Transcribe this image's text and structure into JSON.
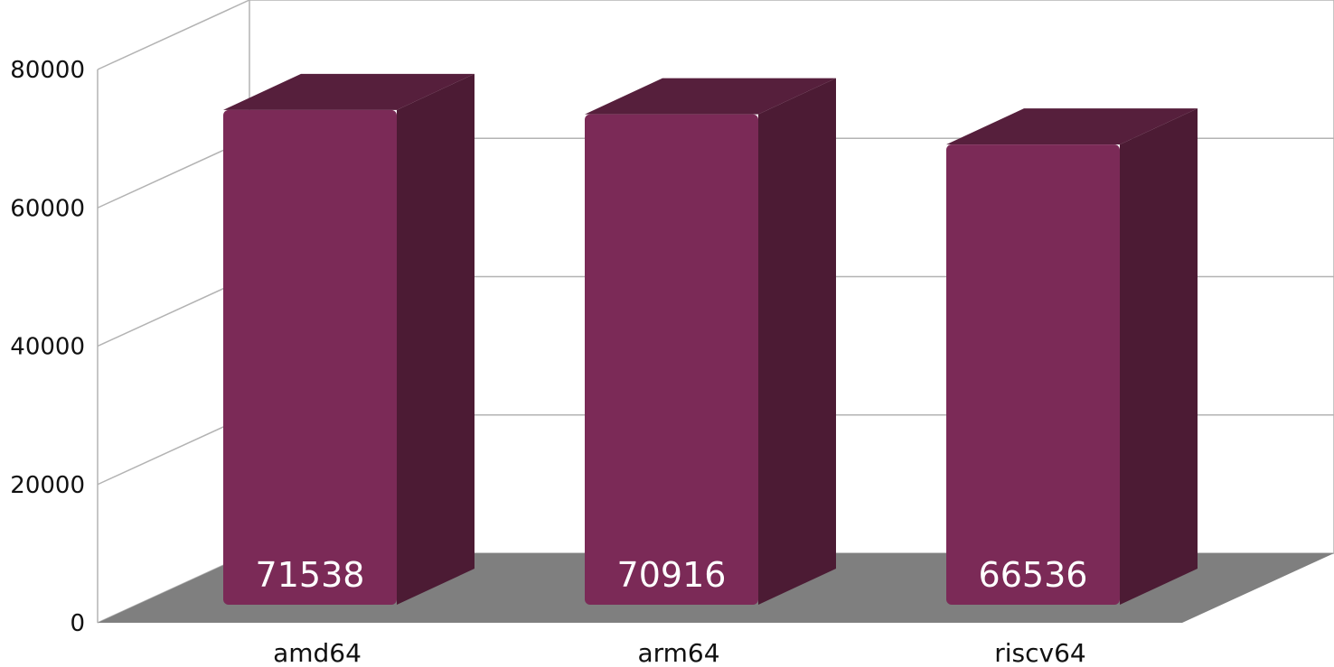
{
  "chart_data": {
    "type": "bar",
    "categories": [
      "amd64",
      "arm64",
      "riscv64"
    ],
    "values": [
      71538,
      70916,
      66536
    ],
    "data_labels": [
      "71538",
      "70916",
      "66536"
    ],
    "yticks": [
      "0",
      "20000",
      "40000",
      "60000",
      "80000"
    ],
    "ylim": [
      0,
      80000
    ],
    "title": "",
    "xlabel": "",
    "ylabel": "",
    "grid": true,
    "legend": "none",
    "style": "3d",
    "colors": {
      "bar_front": "#7b2a57",
      "bar_side": "#4c1b34",
      "bar_top": "#561f3c",
      "floor": "#7f7f7f",
      "grid": "#b3b3b3",
      "value_label": "#ffffff"
    }
  }
}
